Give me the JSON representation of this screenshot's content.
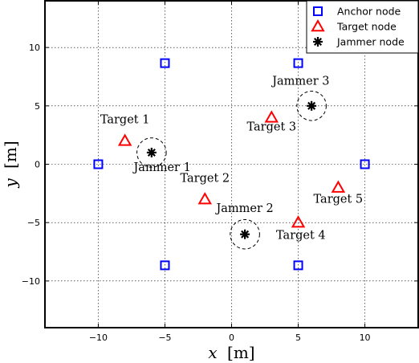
{
  "chart_data": {
    "type": "scatter",
    "xlabel_var": "x",
    "xlabel_unit": "[m]",
    "ylabel_var": "y",
    "ylabel_unit": "[m]",
    "xlim": [
      -14,
      14
    ],
    "ylim": [
      -14,
      14
    ],
    "xticks": [
      -10,
      -5,
      0,
      5,
      10
    ],
    "yticks": [
      -10,
      -5,
      0,
      5,
      10
    ],
    "grid": true,
    "legend_position": "top-right",
    "series": [
      {
        "name": "Anchor node",
        "marker": "square",
        "color": "#0000ff",
        "points": [
          {
            "x": -5,
            "y": 8.66
          },
          {
            "x": 5,
            "y": 8.66
          },
          {
            "x": -10,
            "y": 0
          },
          {
            "x": 10,
            "y": 0
          },
          {
            "x": -5,
            "y": -8.66
          },
          {
            "x": 5,
            "y": -8.66
          }
        ]
      },
      {
        "name": "Target node",
        "marker": "triangle",
        "color": "#ff0000",
        "points": [
          {
            "x": -8,
            "y": 2,
            "label": "Target 1"
          },
          {
            "x": -2,
            "y": -3,
            "label": "Target 2"
          },
          {
            "x": 3,
            "y": 4,
            "label": "Target 3"
          },
          {
            "x": 5,
            "y": -5,
            "label": "Target 4"
          },
          {
            "x": 8,
            "y": -2,
            "label": "Target 5"
          }
        ]
      },
      {
        "name": "Jammer node",
        "marker": "asterisk",
        "color": "#000000",
        "points": [
          {
            "x": -6,
            "y": 1,
            "label": "Jammer 1"
          },
          {
            "x": 1,
            "y": -6,
            "label": "Jammer 2"
          },
          {
            "x": 6,
            "y": 5,
            "label": "Jammer 3"
          }
        ]
      }
    ],
    "annotations": [
      {
        "text": "Target 1",
        "x": -8,
        "y": 3.5
      },
      {
        "text": "Target 2",
        "x": -2,
        "y": -1.5
      },
      {
        "text": "Target 3",
        "x": 3,
        "y": 2.9
      },
      {
        "text": "Target 4",
        "x": 5.2,
        "y": -6.4
      },
      {
        "text": "Target 5",
        "x": 8,
        "y": -3.3
      },
      {
        "text": "Jammer 1",
        "x": -5.2,
        "y": -0.6
      },
      {
        "text": "Jammer 2",
        "x": 1.0,
        "y": -4.1
      },
      {
        "text": "Jammer 3",
        "x": 5.2,
        "y": 6.8
      }
    ],
    "jammer_ring_radius": 1.0
  }
}
